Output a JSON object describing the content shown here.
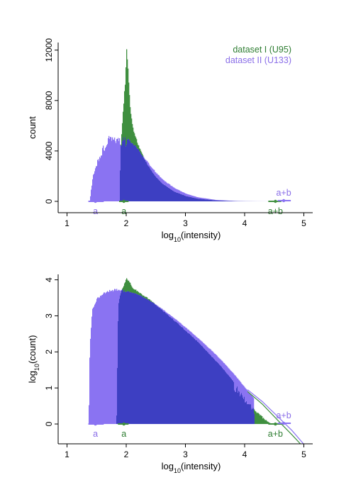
{
  "colors": {
    "green": "#3f8f3f",
    "purple": "#8a73f2",
    "overlap": "#3d3fc2",
    "green_text": "#2e7d32",
    "purple_text": "#8a6ee8"
  },
  "chart_data": [
    {
      "type": "area",
      "panel": "top",
      "xlabel_base": "log",
      "xlabel_sub": "10",
      "xlabel_rest": "(intensity)",
      "ylabel": "count",
      "xlim": [
        0.85,
        5.15
      ],
      "ylim": [
        -900,
        12600
      ],
      "xticks": [
        1,
        2,
        3,
        4,
        5
      ],
      "yticks": [
        0,
        4000,
        8000,
        12000
      ],
      "ytick_labels": [
        "0",
        "4000",
        "8000",
        "12000"
      ],
      "legend": {
        "placement": "top-right",
        "entries": [
          {
            "label": "dataset I (U95)",
            "color": "green"
          },
          {
            "label": "dataset II (U133)",
            "color": "purple"
          }
        ]
      },
      "series": [
        {
          "name": "dataset I (U95)",
          "x": [
            1.88,
            1.9,
            1.94,
            1.98,
            2.0,
            2.02,
            2.04,
            2.06,
            2.1,
            2.15,
            2.2,
            2.3,
            2.4,
            2.5,
            2.6,
            2.8,
            3.0,
            3.2,
            3.5,
            3.8,
            4.0,
            4.2,
            4.4
          ],
          "y": [
            0,
            4200,
            7200,
            9800,
            12200,
            11000,
            9200,
            7600,
            6000,
            5200,
            4500,
            3400,
            2600,
            1950,
            1450,
            800,
            430,
            220,
            80,
            25,
            8,
            2,
            0
          ]
        },
        {
          "name": "dataset II (U133)",
          "x": [
            1.38,
            1.42,
            1.46,
            1.5,
            1.55,
            1.6,
            1.65,
            1.7,
            1.75,
            1.8,
            1.85,
            1.9,
            2.0,
            2.1,
            2.2,
            2.3,
            2.4,
            2.5,
            2.6,
            2.8,
            3.0,
            3.2,
            3.5,
            3.8,
            4.0,
            4.2,
            4.5,
            4.7
          ],
          "y": [
            0,
            1800,
            2700,
            3300,
            3800,
            4400,
            4900,
            5300,
            5500,
            5500,
            5300,
            5200,
            5100,
            4700,
            4200,
            3500,
            2900,
            2300,
            1800,
            1100,
            620,
            330,
            120,
            38,
            14,
            5,
            1,
            0
          ]
        }
      ],
      "annotations": [
        {
          "series": "dataset II (U133)",
          "label": "a",
          "center": 1.48,
          "lo": 1.36,
          "hi": 1.62,
          "label_pos": "below"
        },
        {
          "series": "dataset I (U95)",
          "label": "a",
          "center": 1.96,
          "lo": 1.88,
          "hi": 2.04,
          "label_pos": "below"
        },
        {
          "series": "dataset I (U95)",
          "label": "a+b",
          "center": 4.52,
          "lo": 4.4,
          "hi": 4.62,
          "label_pos": "below"
        },
        {
          "series": "dataset II (U133)",
          "label": "a+b",
          "center": 4.66,
          "lo": 4.56,
          "hi": 4.78,
          "label_pos": "above"
        }
      ]
    },
    {
      "type": "area",
      "panel": "bottom",
      "xlabel_base": "log",
      "xlabel_sub": "10",
      "xlabel_rest": "(intensity)",
      "ylabel_base": "log",
      "ylabel_sub": "10",
      "ylabel_rest": "(count)",
      "xlim": [
        0.85,
        5.15
      ],
      "ylim": [
        -0.55,
        4.15
      ],
      "xticks": [
        1,
        2,
        3,
        4,
        5
      ],
      "yticks": [
        0,
        1,
        2,
        3,
        4
      ],
      "ytick_labels": [
        "0",
        "1",
        "2",
        "3",
        "4"
      ],
      "series": [
        {
          "name": "dataset I (U95)",
          "x": [
            1.83,
            1.86,
            1.9,
            1.95,
            2.0,
            2.05,
            2.1,
            2.2,
            2.4,
            2.6,
            2.8,
            3.0,
            3.2,
            3.4,
            3.6,
            3.8,
            4.0,
            4.1,
            4.2,
            4.3,
            4.4,
            4.45
          ],
          "y": [
            0,
            3.3,
            3.65,
            3.85,
            4.05,
            3.95,
            3.8,
            3.68,
            3.45,
            3.18,
            2.9,
            2.6,
            2.3,
            1.95,
            1.6,
            1.2,
            0.75,
            0.55,
            0.35,
            0.2,
            0.05,
            0
          ]
        },
        {
          "name": "dataset II (U133)",
          "x": [
            1.36,
            1.38,
            1.42,
            1.5,
            1.6,
            1.7,
            1.8,
            1.9,
            2.0,
            2.2,
            2.4,
            2.6,
            2.8,
            3.0,
            3.2,
            3.4,
            3.6,
            3.8,
            4.0,
            4.1,
            4.15,
            4.16
          ],
          "y": [
            0,
            2.2,
            3.2,
            3.5,
            3.65,
            3.72,
            3.75,
            3.75,
            3.7,
            3.6,
            3.42,
            3.2,
            2.95,
            2.68,
            2.4,
            2.1,
            1.78,
            1.42,
            1.02,
            0.82,
            0.72,
            0
          ]
        }
      ],
      "fit_lines": [
        {
          "series": "dataset I (U95)",
          "x": [
            4.05,
            4.3,
            4.55,
            4.8,
            4.97
          ],
          "y": [
            0.9,
            0.55,
            0.12,
            -0.3,
            -0.6
          ]
        },
        {
          "series": "dataset II (U133)",
          "x": [
            4.05,
            4.3,
            4.55,
            4.8,
            5.02
          ],
          "y": [
            0.95,
            0.62,
            0.22,
            -0.18,
            -0.6
          ]
        }
      ],
      "annotations": [
        {
          "series": "dataset II (U133)",
          "label": "a",
          "center": 1.48,
          "lo": 1.36,
          "hi": 1.62,
          "label_pos": "below"
        },
        {
          "series": "dataset I (U95)",
          "label": "a",
          "center": 1.96,
          "lo": 1.86,
          "hi": 2.04,
          "label_pos": "below"
        },
        {
          "series": "dataset I (U95)",
          "label": "a+b",
          "center": 4.52,
          "lo": 4.4,
          "hi": 4.62,
          "label_pos": "below"
        },
        {
          "series": "dataset II (U133)",
          "label": "a+b",
          "center": 4.66,
          "lo": 4.56,
          "hi": 4.78,
          "label_pos": "above"
        }
      ]
    }
  ]
}
